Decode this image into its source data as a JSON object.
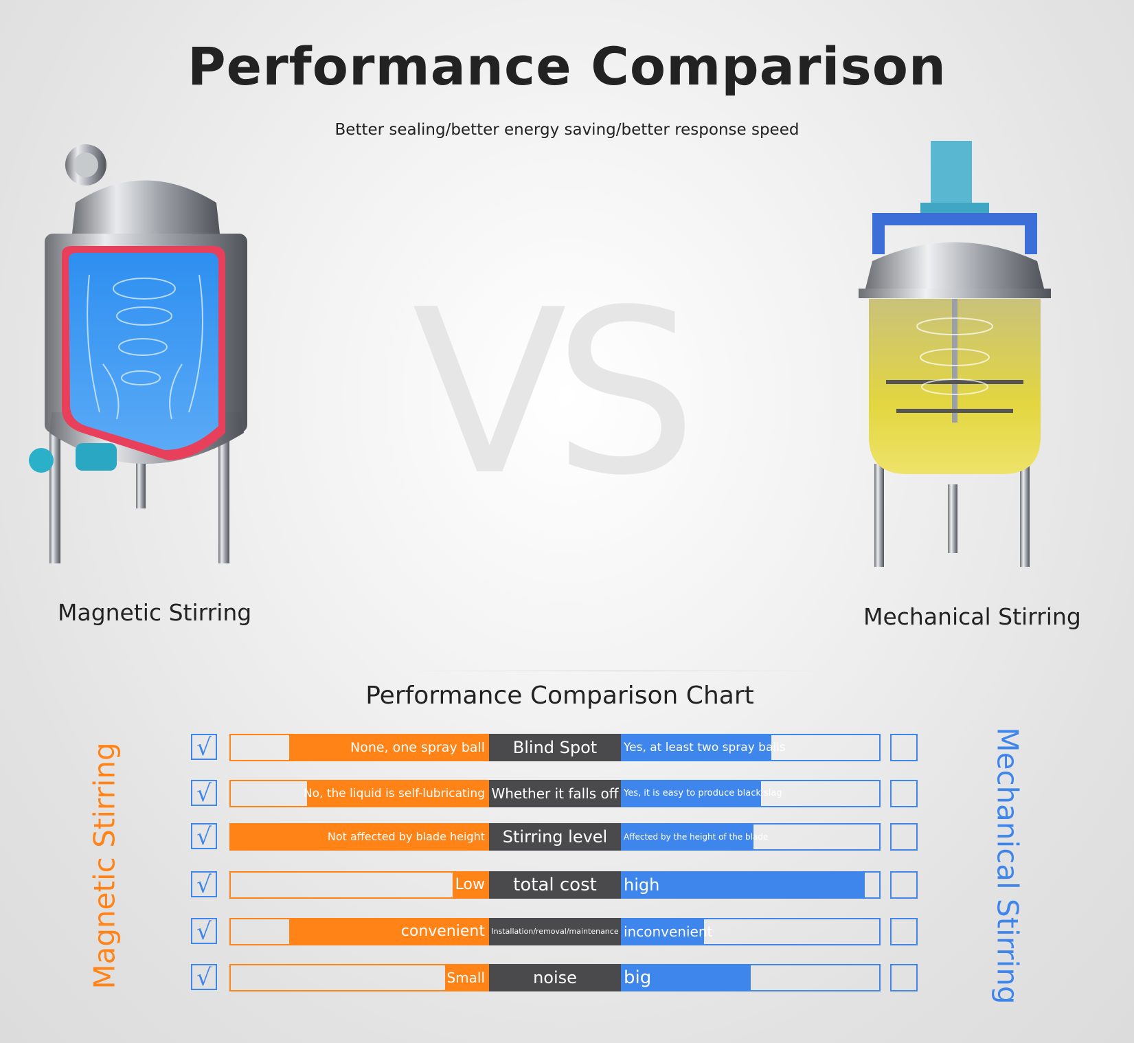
{
  "title": "Performance Comparison",
  "subtitle": "Better sealing/better energy saving/better response speed",
  "watermark": "VS",
  "products": {
    "left": "Magnetic Stirring",
    "right": "Mechanical Stirring"
  },
  "colors": {
    "magnetic": "#ff8316",
    "mechanical": "#3f86ec",
    "center": "#4a4a4c"
  },
  "chart_data": {
    "type": "bar",
    "title": "Performance Comparison Chart",
    "left_axis_label": "Magnetic Stirring",
    "right_axis_label": "Mechanical Stirring",
    "rows": [
      {
        "category": "Blind Spot",
        "left_text": "None, one spray ball",
        "left_value": 0.77,
        "right_text": "Yes, at least two spray balls",
        "right_value": 0.58,
        "left_check": "√",
        "left_font": 19,
        "center_font": 24,
        "right_font": 17
      },
      {
        "category": "Whether it falls off",
        "left_text": "No, the liquid is self-lubricating",
        "left_value": 0.7,
        "right_text": "Yes, it is easy to produce black slag",
        "right_value": 0.54,
        "left_check": "√",
        "left_font": 17,
        "center_font": 20,
        "right_font": 13
      },
      {
        "category": "Stirring level",
        "left_text": "Not affected by blade height",
        "left_value": 1.0,
        "right_text": "Affected by the height of the blade",
        "right_value": 0.51,
        "left_check": "√",
        "left_font": 16,
        "center_font": 24,
        "right_font": 12
      },
      {
        "category": "total cost",
        "left_text": "Low",
        "left_value": 0.14,
        "right_text": "high",
        "right_value": 0.94,
        "left_check": "√",
        "left_font": 22,
        "center_font": 26,
        "right_font": 24
      },
      {
        "category": "Installation/removal/maintenance",
        "left_text": "convenient",
        "left_value": 0.77,
        "right_text": "inconvenient",
        "right_value": 0.32,
        "left_check": "√",
        "left_font": 22,
        "center_font": 11,
        "right_font": 20
      },
      {
        "category": "noise",
        "left_text": "Small",
        "left_value": 0.17,
        "right_text": "big",
        "right_value": 0.5,
        "left_check": "√",
        "left_font": 20,
        "center_font": 24,
        "right_font": 26
      }
    ]
  }
}
